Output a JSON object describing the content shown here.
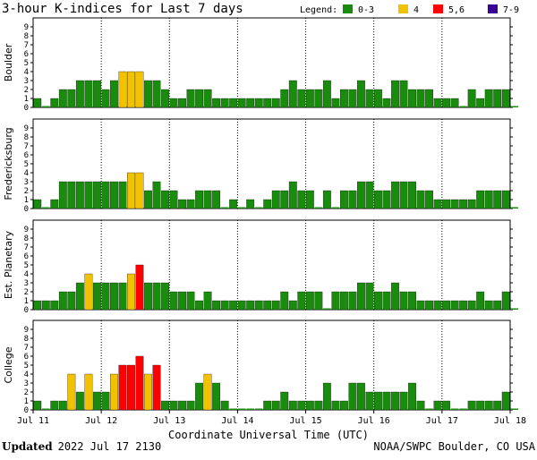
{
  "title": "3-hour K-indices for Last 7 days",
  "legend": {
    "label": "Legend:",
    "items": [
      {
        "label": "0-3",
        "color": "#1a8c0d"
      },
      {
        "label": "4",
        "color": "#f2c200"
      },
      {
        "label": "5,6",
        "color": "#ff0000"
      },
      {
        "label": "7-9",
        "color": "#3a0096"
      }
    ]
  },
  "footer": {
    "updated_label": "Updated",
    "updated_value": "2022 Jul 17 2130",
    "credit": "NOAA/SWPC Boulder, CO USA"
  },
  "chart_data": {
    "type": "bar",
    "title": "3-hour K-indices for Last 7 days",
    "xlabel": "Coordinate Universal Time (UTC)",
    "x_ticks": [
      "Jul 11",
      "Jul 12",
      "Jul 13",
      "Jul 14",
      "Jul 15",
      "Jul 16",
      "Jul 17",
      "Jul 18"
    ],
    "ylim": [
      0,
      9
    ],
    "y_ticks": [
      "0",
      "1",
      "2",
      "3",
      "4",
      "5",
      "6",
      "7",
      "8",
      "9"
    ],
    "bars_per_day": 8,
    "color_scale": [
      {
        "range": "0-3",
        "color": "#1a8c0d"
      },
      {
        "range": "4",
        "color": "#f2c200"
      },
      {
        "range": "5,6",
        "color": "#ff0000"
      },
      {
        "range": "7-9",
        "color": "#3a0096"
      }
    ],
    "series": [
      {
        "name": "Boulder",
        "values": [
          1,
          0,
          1,
          2,
          2,
          3,
          3,
          3,
          2,
          3,
          4,
          4,
          4,
          3,
          3,
          2,
          1,
          1,
          2,
          2,
          2,
          1,
          1,
          1,
          1,
          1,
          1,
          1,
          1,
          2,
          3,
          2,
          2,
          2,
          3,
          1,
          2,
          2,
          3,
          2,
          2,
          1,
          3,
          3,
          2,
          2,
          2,
          1,
          1,
          1,
          0,
          2,
          1,
          2,
          2,
          2,
          0
        ]
      },
      {
        "name": "Fredericksburg",
        "values": [
          1,
          0,
          1,
          3,
          3,
          3,
          3,
          3,
          3,
          3,
          3,
          4,
          4,
          2,
          3,
          2,
          2,
          1,
          1,
          2,
          2,
          2,
          0,
          1,
          0,
          1,
          0,
          1,
          2,
          2,
          3,
          2,
          2,
          0,
          2,
          0,
          2,
          2,
          3,
          3,
          2,
          2,
          3,
          3,
          3,
          2,
          2,
          1,
          1,
          1,
          1,
          1,
          2,
          2,
          2,
          2,
          0
        ]
      },
      {
        "name": "Est. Planetary",
        "values": [
          1,
          1,
          1,
          2,
          2,
          3,
          4,
          3,
          3,
          3,
          3,
          4,
          5,
          3,
          3,
          3,
          2,
          2,
          2,
          1,
          2,
          1,
          1,
          1,
          1,
          1,
          1,
          1,
          1,
          2,
          1,
          2,
          2,
          2,
          0,
          2,
          2,
          2,
          3,
          3,
          2,
          2,
          3,
          2,
          2,
          1,
          1,
          1,
          1,
          1,
          1,
          1,
          2,
          1,
          1,
          2,
          0
        ]
      },
      {
        "name": "College",
        "values": [
          1,
          0,
          1,
          1,
          4,
          2,
          4,
          2,
          2,
          4,
          5,
          5,
          6,
          4,
          5,
          1,
          1,
          1,
          1,
          3,
          4,
          3,
          1,
          0,
          0,
          0,
          0,
          1,
          1,
          2,
          1,
          1,
          1,
          1,
          3,
          1,
          1,
          3,
          3,
          2,
          2,
          2,
          2,
          2,
          3,
          1,
          0,
          1,
          1,
          0,
          0,
          1,
          1,
          1,
          1,
          2,
          0
        ]
      }
    ]
  }
}
